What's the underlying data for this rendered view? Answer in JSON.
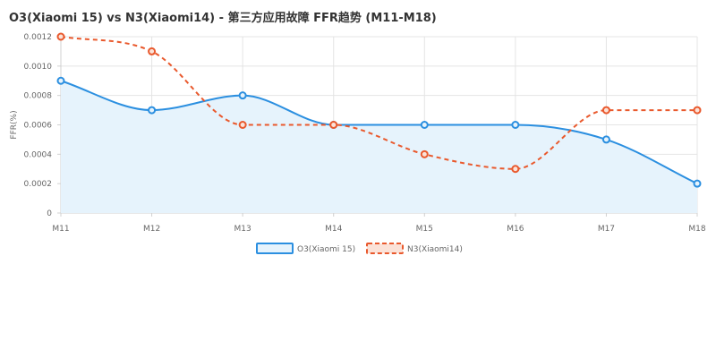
{
  "chart_data": {
    "type": "line",
    "title": "O3(Xiaomi 15) vs N3(Xiaomi14) - 第三方应用故障 FFR趋势 (M11-M18)",
    "ylabel": "FFR(%)",
    "xlabel": "",
    "categories": [
      "M11",
      "M12",
      "M13",
      "M14",
      "M15",
      "M16",
      "M17",
      "M18"
    ],
    "yticks": [
      "0",
      "0.0002",
      "0.0004",
      "0.0006",
      "0.0008",
      "0.0010",
      "0.0012"
    ],
    "ylim": [
      0,
      0.0012
    ],
    "grid": true,
    "legend_position": "bottom",
    "series": [
      {
        "name": "O3(Xiaomi 15)",
        "values": [
          0.0009,
          0.0007,
          0.0008,
          0.0006,
          0.0006,
          0.0006,
          0.0005,
          0.0002
        ],
        "color": "#2b8fe0",
        "fill": "#e6f3fc",
        "style": "solid",
        "area": true
      },
      {
        "name": "N3(Xiaomi14)",
        "values": [
          0.0012,
          0.0011,
          0.0006,
          0.0006,
          0.0004,
          0.0003,
          0.0007,
          0.0007
        ],
        "color": "#e9592d",
        "style": "dashed",
        "area": false
      }
    ]
  }
}
